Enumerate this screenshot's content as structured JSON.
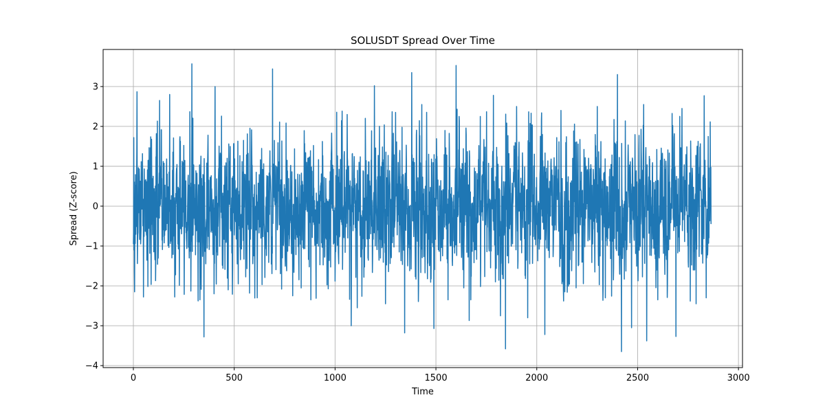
{
  "chart_data": {
    "type": "line",
    "title": "SOLUSDT Spread Over Time",
    "xlabel": "Time",
    "ylabel": "Spread (Z-score)",
    "xlim": [
      -150,
      3020
    ],
    "ylim": [
      -4.05,
      3.93
    ],
    "x_ticks": [
      0,
      500,
      1000,
      1500,
      2000,
      2500,
      3000
    ],
    "x_tick_labels": [
      "0",
      "500",
      "1000",
      "1500",
      "2000",
      "2500",
      "3000"
    ],
    "y_ticks": [
      -4,
      -3,
      -2,
      -1,
      0,
      1,
      2,
      3
    ],
    "y_tick_labels": [
      "−4",
      "−3",
      "−2",
      "−1",
      "0",
      "1",
      "2",
      "3"
    ],
    "grid": true,
    "line_color": "#1f77b4",
    "n_points": 2865,
    "key_points": [
      {
        "x": 0,
        "y": -0.95
      },
      {
        "x": 2,
        "y": 1.72
      },
      {
        "x": 6,
        "y": -2.15
      },
      {
        "x": 18,
        "y": 2.87
      },
      {
        "x": 50,
        "y": -2.28
      },
      {
        "x": 110,
        "y": -1.87
      },
      {
        "x": 130,
        "y": 2.65
      },
      {
        "x": 180,
        "y": 2.8
      },
      {
        "x": 205,
        "y": -2.28
      },
      {
        "x": 290,
        "y": 3.57
      },
      {
        "x": 330,
        "y": -2.35
      },
      {
        "x": 350,
        "y": -3.28
      },
      {
        "x": 405,
        "y": 3.0
      },
      {
        "x": 400,
        "y": -2.2
      },
      {
        "x": 470,
        "y": -2.1
      },
      {
        "x": 520,
        "y": -1.95
      },
      {
        "x": 690,
        "y": 3.44
      },
      {
        "x": 735,
        "y": -2.08
      },
      {
        "x": 790,
        "y": -2.25
      },
      {
        "x": 880,
        "y": -2.35
      },
      {
        "x": 1000,
        "y": -1.88
      },
      {
        "x": 1060,
        "y": 2.3
      },
      {
        "x": 1080,
        "y": -3.0
      },
      {
        "x": 1110,
        "y": -2.55
      },
      {
        "x": 1195,
        "y": 3.02
      },
      {
        "x": 1250,
        "y": -2.45
      },
      {
        "x": 1300,
        "y": 2.35
      },
      {
        "x": 1345,
        "y": -3.18
      },
      {
        "x": 1380,
        "y": 3.35
      },
      {
        "x": 1430,
        "y": 2.55
      },
      {
        "x": 1490,
        "y": -3.07
      },
      {
        "x": 1560,
        "y": -2.35
      },
      {
        "x": 1600,
        "y": 3.53
      },
      {
        "x": 1605,
        "y": 2.43
      },
      {
        "x": 1665,
        "y": -2.87
      },
      {
        "x": 1720,
        "y": 2.25
      },
      {
        "x": 1785,
        "y": 2.78
      },
      {
        "x": 1820,
        "y": -2.75
      },
      {
        "x": 1845,
        "y": -3.58
      },
      {
        "x": 1900,
        "y": 2.5
      },
      {
        "x": 1955,
        "y": -2.8
      },
      {
        "x": 2040,
        "y": -3.22
      },
      {
        "x": 2120,
        "y": 2.4
      },
      {
        "x": 2195,
        "y": -2.05
      },
      {
        "x": 2300,
        "y": 2.5
      },
      {
        "x": 2340,
        "y": -2.3
      },
      {
        "x": 2400,
        "y": 3.3
      },
      {
        "x": 2420,
        "y": -3.65
      },
      {
        "x": 2470,
        "y": -3.05
      },
      {
        "x": 2530,
        "y": 2.55
      },
      {
        "x": 2545,
        "y": -3.38
      },
      {
        "x": 2600,
        "y": -2.35
      },
      {
        "x": 2690,
        "y": -3.27
      },
      {
        "x": 2720,
        "y": 2.45
      },
      {
        "x": 2790,
        "y": -2.45
      },
      {
        "x": 2830,
        "y": 2.77
      },
      {
        "x": 2840,
        "y": -2.3
      },
      {
        "x": 2864,
        "y": -0.45
      }
    ]
  }
}
